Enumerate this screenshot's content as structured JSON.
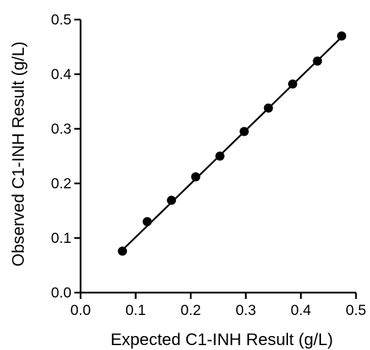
{
  "chart_data": {
    "type": "scatter",
    "title": "",
    "xlabel": "Expected C1-INH Result (g/L)",
    "ylabel": "Observed C1-INH Result (g/L)",
    "xlim": [
      0.0,
      0.5
    ],
    "ylim": [
      0.0,
      0.5
    ],
    "xticks": [
      "0.0",
      "0.1",
      "0.2",
      "0.3",
      "0.4",
      "0.5"
    ],
    "yticks": [
      "0.0",
      "0.1",
      "0.2",
      "0.3",
      "0.4",
      "0.5"
    ],
    "grid": false,
    "legend": "none",
    "series": [
      {
        "x": [
          0.076,
          0.121,
          0.165,
          0.209,
          0.253,
          0.297,
          0.341,
          0.385,
          0.43,
          0.474
        ],
        "y": [
          0.076,
          0.13,
          0.169,
          0.212,
          0.25,
          0.295,
          0.338,
          0.382,
          0.424,
          0.47
        ]
      }
    ],
    "fit_line": {
      "x": [
        0.076,
        0.474
      ],
      "y": [
        0.078,
        0.468
      ]
    },
    "colors": {
      "marker": "#000000",
      "line": "#000000",
      "axis": "#000000"
    }
  }
}
